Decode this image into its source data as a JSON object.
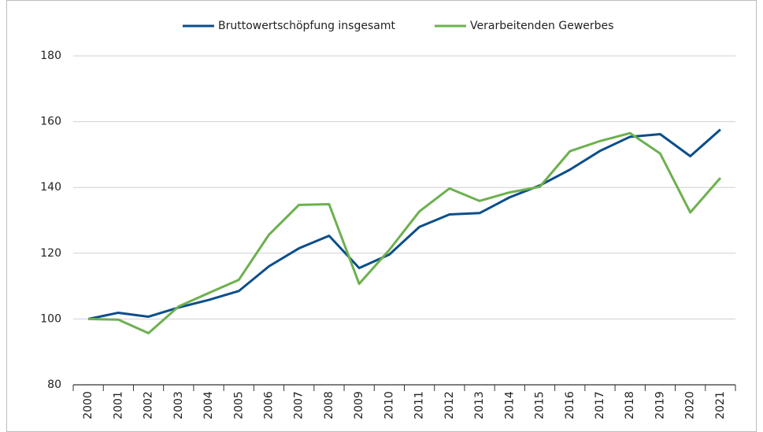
{
  "chart_data": {
    "type": "line",
    "categories": [
      "2000",
      "2001",
      "2002",
      "2003",
      "2004",
      "2005",
      "2006",
      "2007",
      "2008",
      "2009",
      "2010",
      "2011",
      "2012",
      "2013",
      "2014",
      "2015",
      "2016",
      "2017",
      "2018",
      "2019",
      "2020",
      "2021"
    ],
    "series": [
      {
        "name": "Bruttowertschöpfung insgesamt",
        "color": "#0b4e8a",
        "values": [
          100,
          101.9,
          100.7,
          103.5,
          105.8,
          108.5,
          116,
          121.5,
          125.3,
          115.5,
          119.6,
          128,
          131.8,
          132.2,
          137,
          140.6,
          145.4,
          151.1,
          155.4,
          156.2,
          149.5,
          157.6
        ]
      },
      {
        "name": "Verarbeitenden Gewerbes",
        "color": "#6db04f",
        "values": [
          100,
          99.8,
          95.7,
          103.8,
          107.9,
          111.9,
          125.6,
          134.7,
          134.9,
          110.7,
          121,
          132.7,
          139.7,
          135.9,
          138.5,
          140.2,
          151,
          154.1,
          156.5,
          150.3,
          132.4,
          142.9
        ]
      }
    ],
    "ylim": [
      80,
      190
    ],
    "yticks": [
      80,
      100,
      120,
      140,
      160,
      180
    ],
    "grid": true,
    "legend": "top"
  }
}
